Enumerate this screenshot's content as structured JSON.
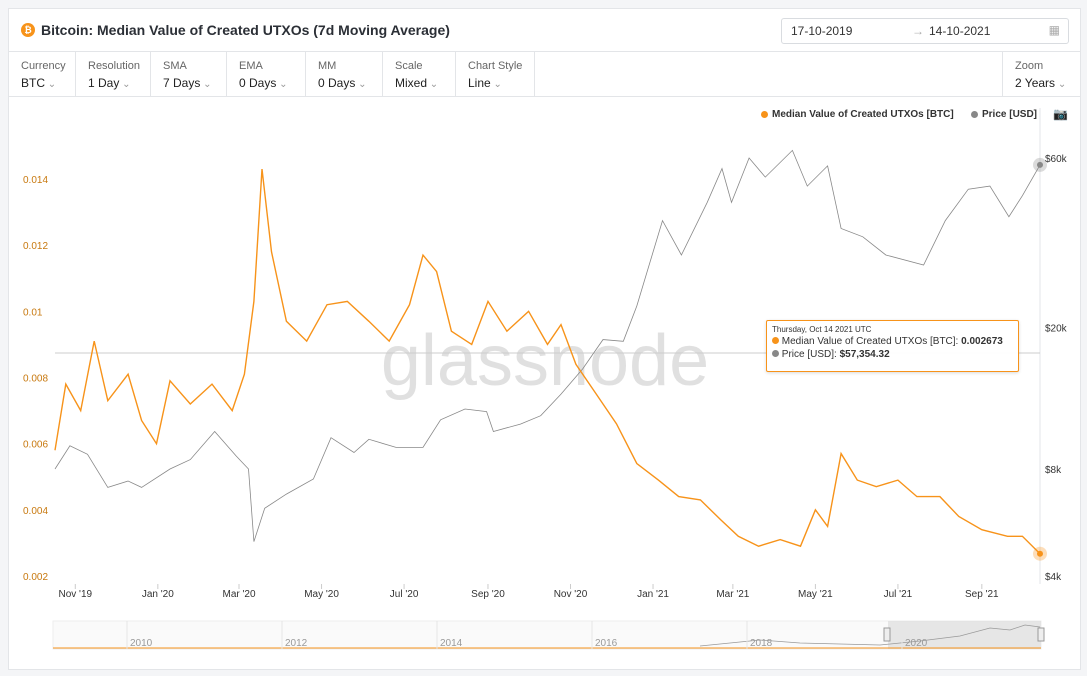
{
  "header": {
    "title": "Bitcoin: Median Value of Created UTXOs (7d Moving Average)",
    "date_from": "17-10-2019",
    "date_to": "14-10-2021",
    "arrow": "→"
  },
  "controls": [
    {
      "label": "Currency",
      "value": "BTC"
    },
    {
      "label": "Resolution",
      "value": "1 Day"
    },
    {
      "label": "SMA",
      "value": "7 Days"
    },
    {
      "label": "EMA",
      "value": "0 Days"
    },
    {
      "label": "MM",
      "value": "0 Days"
    },
    {
      "label": "Scale",
      "value": "Mixed"
    },
    {
      "label": "Chart Style",
      "value": "Line"
    },
    {
      "label": "Zoom",
      "value": "2 Years"
    }
  ],
  "tooltip": {
    "date": "Thursday, Oct 14 2021 UTC",
    "series1_label": "Median Value of Created UTXOs [BTC]: ",
    "series1_value": "0.002673",
    "series2_label": "Price [USD]: ",
    "series2_value": "$57,354.32"
  },
  "watermark": "glassnode",
  "navigator": {
    "years": [
      "2010",
      "2012",
      "2014",
      "2016",
      "2018",
      "2020"
    ]
  },
  "colors": {
    "series1": "#f7931a",
    "series2": "#888888"
  },
  "chart_data": {
    "type": "line",
    "title": "Bitcoin: Median Value of Created UTXOs (7d Moving Average)",
    "legend": [
      "Median Value of Created UTXOs [BTC]",
      "Price [USD]"
    ],
    "legend_position": "top-right",
    "x_range": [
      "2019-10-17",
      "2021-10-14"
    ],
    "x_ticks": [
      [
        "2019-11-01",
        "Nov '19"
      ],
      [
        "2020-01-01",
        "Jan '20"
      ],
      [
        "2020-03-01",
        "Mar '20"
      ],
      [
        "2020-05-01",
        "May '20"
      ],
      [
        "2020-07-01",
        "Jul '20"
      ],
      [
        "2020-09-01",
        "Sep '20"
      ],
      [
        "2020-11-01",
        "Nov '20"
      ],
      [
        "2021-01-01",
        "Jan '21"
      ],
      [
        "2021-03-01",
        "Mar '21"
      ],
      [
        "2021-05-01",
        "May '21"
      ],
      [
        "2021-07-01",
        "Jul '21"
      ],
      [
        "2021-09-01",
        "Sep '21"
      ]
    ],
    "y_left": {
      "range": [
        0.002,
        0.0146
      ],
      "ticks": [
        "0.002",
        "0.004",
        "0.006",
        "0.008",
        "0.01",
        "0.012",
        "0.014"
      ]
    },
    "y_right": {
      "scale": "log",
      "range": [
        4000,
        68000
      ],
      "ticks": [
        [
          4000,
          "$4k"
        ],
        [
          8000,
          "$8k"
        ],
        [
          20000,
          "$20k"
        ],
        [
          60000,
          "$60k"
        ]
      ]
    },
    "series": [
      {
        "name": "Median Value of Created UTXOs [BTC]",
        "axis": "left",
        "points": [
          [
            "2019-10-17",
            0.0058
          ],
          [
            "2019-10-25",
            0.0078
          ],
          [
            "2019-11-05",
            0.007
          ],
          [
            "2019-11-15",
            0.0091
          ],
          [
            "2019-11-25",
            0.0073
          ],
          [
            "2019-12-10",
            0.0081
          ],
          [
            "2019-12-20",
            0.0067
          ],
          [
            "2019-12-31",
            0.006
          ],
          [
            "2020-01-10",
            0.0079
          ],
          [
            "2020-01-25",
            0.0072
          ],
          [
            "2020-02-10",
            0.0078
          ],
          [
            "2020-02-25",
            0.007
          ],
          [
            "2020-03-05",
            0.0081
          ],
          [
            "2020-03-12",
            0.0103
          ],
          [
            "2020-03-18",
            0.0143
          ],
          [
            "2020-03-25",
            0.0118
          ],
          [
            "2020-04-05",
            0.0097
          ],
          [
            "2020-04-20",
            0.0091
          ],
          [
            "2020-05-05",
            0.0102
          ],
          [
            "2020-05-20",
            0.0103
          ],
          [
            "2020-06-05",
            0.0097
          ],
          [
            "2020-06-20",
            0.0091
          ],
          [
            "2020-07-05",
            0.0102
          ],
          [
            "2020-07-15",
            0.0117
          ],
          [
            "2020-07-25",
            0.0112
          ],
          [
            "2020-08-05",
            0.0094
          ],
          [
            "2020-08-20",
            0.009
          ],
          [
            "2020-09-01",
            0.0103
          ],
          [
            "2020-09-15",
            0.0094
          ],
          [
            "2020-10-01",
            0.01
          ],
          [
            "2020-10-15",
            0.009
          ],
          [
            "2020-10-25",
            0.0096
          ],
          [
            "2020-11-05",
            0.0084
          ],
          [
            "2020-11-20",
            0.0075
          ],
          [
            "2020-12-05",
            0.0066
          ],
          [
            "2020-12-20",
            0.0054
          ],
          [
            "2021-01-05",
            0.0049
          ],
          [
            "2021-01-20",
            0.0044
          ],
          [
            "2021-02-05",
            0.0043
          ],
          [
            "2021-02-20",
            0.0037
          ],
          [
            "2021-03-05",
            0.0032
          ],
          [
            "2021-03-20",
            0.0029
          ],
          [
            "2021-04-05",
            0.0031
          ],
          [
            "2021-04-20",
            0.0029
          ],
          [
            "2021-05-01",
            0.004
          ],
          [
            "2021-05-10",
            0.0035
          ],
          [
            "2021-05-20",
            0.0057
          ],
          [
            "2021-06-01",
            0.0049
          ],
          [
            "2021-06-15",
            0.0047
          ],
          [
            "2021-07-01",
            0.0049
          ],
          [
            "2021-07-15",
            0.0044
          ],
          [
            "2021-08-01",
            0.0044
          ],
          [
            "2021-08-15",
            0.0038
          ],
          [
            "2021-09-01",
            0.0034
          ],
          [
            "2021-09-20",
            0.0032
          ],
          [
            "2021-10-01",
            0.0032
          ],
          [
            "2021-10-14",
            0.002673
          ]
        ]
      },
      {
        "name": "Price [USD]",
        "axis": "right",
        "points": [
          [
            "2019-10-17",
            8000
          ],
          [
            "2019-10-28",
            9300
          ],
          [
            "2019-11-10",
            8800
          ],
          [
            "2019-11-25",
            7100
          ],
          [
            "2019-12-10",
            7400
          ],
          [
            "2019-12-20",
            7100
          ],
          [
            "2020-01-10",
            8000
          ],
          [
            "2020-01-25",
            8500
          ],
          [
            "2020-02-12",
            10200
          ],
          [
            "2020-02-28",
            8700
          ],
          [
            "2020-03-08",
            8000
          ],
          [
            "2020-03-12",
            5000
          ],
          [
            "2020-03-20",
            6200
          ],
          [
            "2020-04-05",
            6800
          ],
          [
            "2020-04-25",
            7500
          ],
          [
            "2020-05-08",
            9800
          ],
          [
            "2020-05-25",
            8900
          ],
          [
            "2020-06-05",
            9700
          ],
          [
            "2020-06-25",
            9200
          ],
          [
            "2020-07-15",
            9200
          ],
          [
            "2020-07-28",
            11000
          ],
          [
            "2020-08-15",
            11800
          ],
          [
            "2020-08-31",
            11600
          ],
          [
            "2020-09-05",
            10200
          ],
          [
            "2020-09-25",
            10700
          ],
          [
            "2020-10-10",
            11300
          ],
          [
            "2020-10-25",
            13000
          ],
          [
            "2020-11-10",
            15300
          ],
          [
            "2020-11-25",
            18500
          ],
          [
            "2020-12-10",
            18300
          ],
          [
            "2020-12-20",
            23000
          ],
          [
            "2021-01-08",
            40000
          ],
          [
            "2021-01-22",
            32000
          ],
          [
            "2021-02-10",
            45000
          ],
          [
            "2021-02-21",
            56000
          ],
          [
            "2021-02-28",
            45000
          ],
          [
            "2021-03-13",
            60000
          ],
          [
            "2021-03-25",
            53000
          ],
          [
            "2021-04-14",
            63000
          ],
          [
            "2021-04-25",
            50000
          ],
          [
            "2021-05-10",
            57000
          ],
          [
            "2021-05-20",
            38000
          ],
          [
            "2021-06-05",
            36000
          ],
          [
            "2021-06-22",
            32000
          ],
          [
            "2021-07-20",
            30000
          ],
          [
            "2021-08-05",
            40000
          ],
          [
            "2021-08-22",
            49000
          ],
          [
            "2021-09-07",
            50000
          ],
          [
            "2021-09-21",
            41000
          ],
          [
            "2021-10-01",
            47000
          ],
          [
            "2021-10-14",
            57354
          ]
        ]
      }
    ]
  }
}
